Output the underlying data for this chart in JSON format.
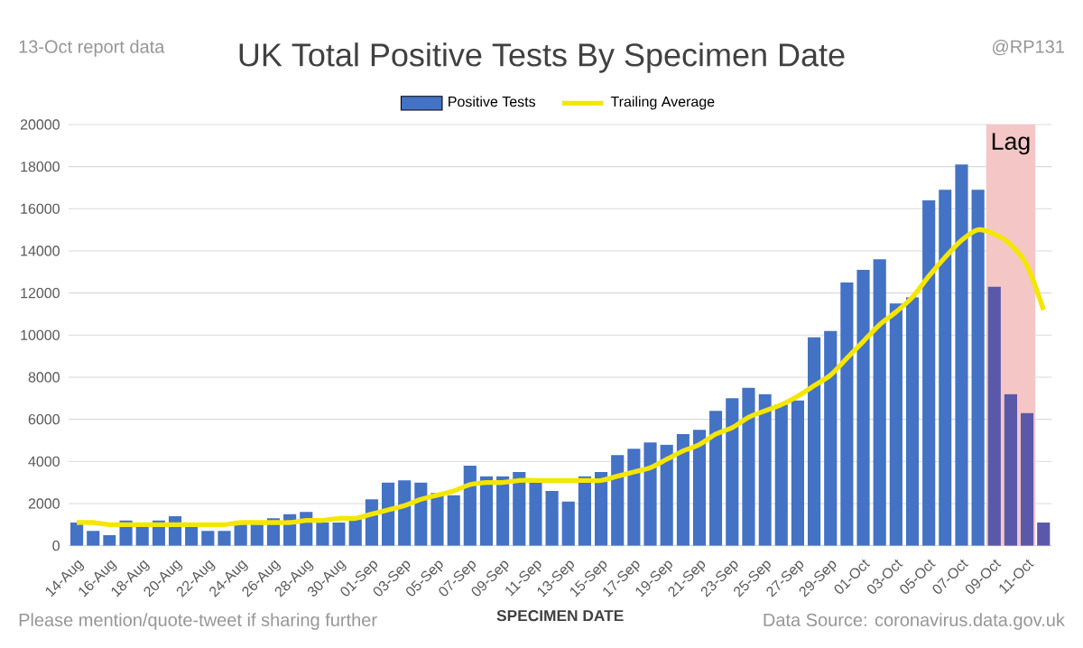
{
  "chart_data": {
    "type": "bar",
    "title": "UK Total Positive Tests By Specimen Date",
    "xlabel": "SPECIMEN DATE",
    "categories": [
      "14-Aug",
      null,
      "16-Aug",
      null,
      "18-Aug",
      null,
      "20-Aug",
      null,
      "22-Aug",
      null,
      "24-Aug",
      null,
      "26-Aug",
      null,
      "28-Aug",
      null,
      "30-Aug",
      null,
      "01-Sep",
      null,
      "03-Sep",
      null,
      "05-Sep",
      null,
      "07-Sep",
      null,
      "09-Sep",
      null,
      "11-Sep",
      null,
      "13-Sep",
      null,
      "15-Sep",
      null,
      "17-Sep",
      null,
      "19-Sep",
      null,
      "21-Sep",
      null,
      "23-Sep",
      null,
      "25-Sep",
      null,
      "27-Sep",
      null,
      "29-Sep",
      null,
      "01-Oct",
      null,
      "03-Oct",
      null,
      "05-Oct",
      null,
      "07-Oct",
      null,
      "09-Oct",
      null,
      "11-Oct",
      null
    ],
    "series": [
      {
        "name": "Positive Tests",
        "color": "#4472c4",
        "colors": [
          "#4472c4",
          "#4472c4",
          "#4472c4",
          "#4472c4",
          "#4472c4",
          "#4472c4",
          "#4472c4",
          "#4472c4",
          "#4472c4",
          "#4472c4",
          "#4472c4",
          "#4472c4",
          "#4472c4",
          "#4472c4",
          "#4472c4",
          "#4472c4",
          "#4472c4",
          "#4472c4",
          "#4472c4",
          "#4472c4",
          "#4472c4",
          "#4472c4",
          "#4472c4",
          "#4472c4",
          "#4472c4",
          "#4472c4",
          "#4472c4",
          "#4472c4",
          "#4472c4",
          "#4472c4",
          "#4472c4",
          "#4472c4",
          "#4472c4",
          "#4472c4",
          "#4472c4",
          "#4472c4",
          "#4472c4",
          "#4472c4",
          "#4472c4",
          "#4472c4",
          "#4472c4",
          "#4472c4",
          "#4472c4",
          "#4472c4",
          "#4472c4",
          "#4472c4",
          "#4472c4",
          "#4472c4",
          "#4472c4",
          "#4472c4",
          "#4472c4",
          "#4472c4",
          "#4472c4",
          "#4472c4",
          "#4472c4",
          "#4472c4",
          "#5a58a8",
          "#5a58a8",
          "#5a58a8",
          "#5a58a8"
        ],
        "values": [
          1100,
          700,
          500,
          1200,
          900,
          1200,
          1400,
          900,
          700,
          700,
          1000,
          1000,
          1300,
          1500,
          1600,
          1100,
          1100,
          1300,
          2200,
          3000,
          3100,
          3000,
          2500,
          2400,
          3800,
          3300,
          3300,
          3500,
          3100,
          2600,
          2100,
          3300,
          3500,
          4300,
          4600,
          4900,
          4800,
          5300,
          5500,
          6400,
          7000,
          7500,
          7200,
          6700,
          6900,
          9900,
          10200,
          12500,
          13100,
          13600,
          11500,
          11800,
          16400,
          16900,
          18100,
          16900,
          12300,
          7200,
          6300,
          1100
        ]
      },
      {
        "name": "Trailing Average",
        "type": "line",
        "color": "#f5e600",
        "values": [
          1100,
          1100,
          1000,
          1000,
          1000,
          1000,
          1000,
          1000,
          1000,
          1000,
          1100,
          1100,
          1100,
          1100,
          1200,
          1200,
          1300,
          1300,
          1500,
          1700,
          1900,
          2200,
          2400,
          2600,
          2900,
          3000,
          3000,
          3100,
          3100,
          3100,
          3100,
          3100,
          3100,
          3300,
          3500,
          3700,
          4100,
          4500,
          4800,
          5300,
          5600,
          6100,
          6400,
          6700,
          7100,
          7600,
          8100,
          8900,
          9700,
          10500,
          11100,
          11800,
          12800,
          13700,
          14500,
          15000,
          14800,
          14300,
          13300,
          11200
        ]
      }
    ],
    "ylim": [
      0,
      20000
    ],
    "yticks": [
      0,
      2000,
      4000,
      6000,
      8000,
      10000,
      12000,
      14000,
      16000,
      18000,
      20000
    ],
    "grid": "y",
    "legend": "top",
    "bands": [
      {
        "axis": "x",
        "from": "09-Oct",
        "to": "11-Oct",
        "label": "Lag",
        "color": "#f4c6c6"
      }
    ],
    "annotations": [
      "13-Oct report data",
      "@RP131",
      "Please mention/quote-tweet if sharing further",
      "Data Source: coronavirus.data.gov.uk"
    ]
  }
}
